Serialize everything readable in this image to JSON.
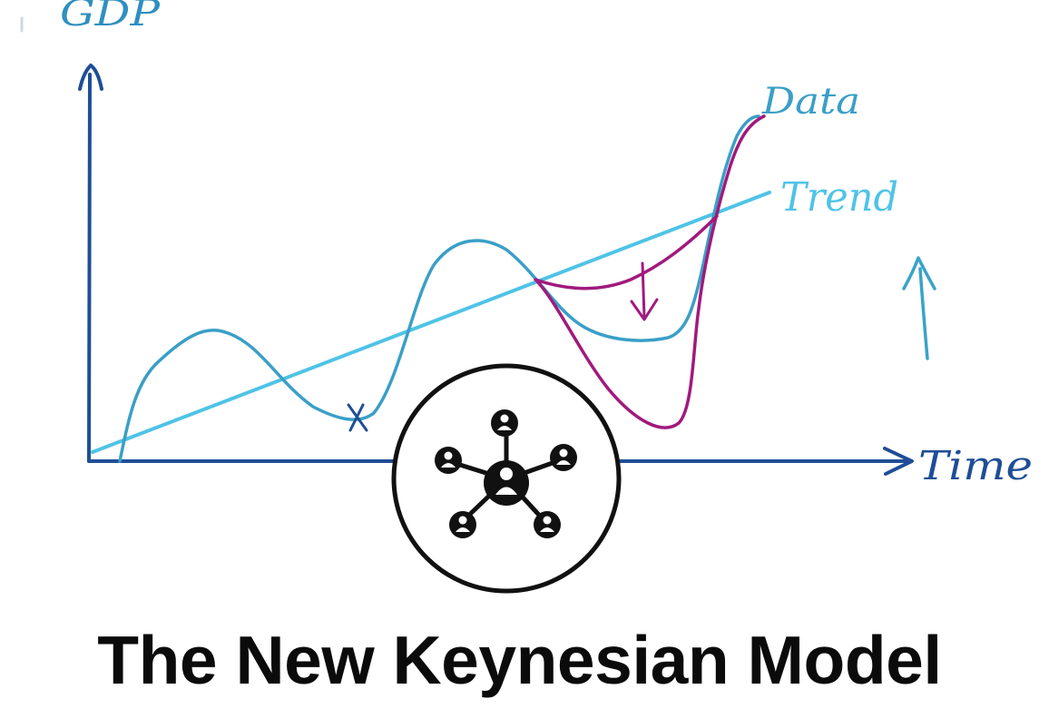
{
  "sketch": {
    "y_axis_label": "GDP",
    "x_axis_label": "Time",
    "series_labels": {
      "data": "Data",
      "trend": "Trend"
    },
    "colors": {
      "axis": "#1f4e96",
      "data_line": "#3a9fc7",
      "trend_line": "#4fc3e6",
      "shock_line": "#a01a7d",
      "ink": "#111111"
    },
    "icons": {
      "center_badge": "network-people-icon",
      "up_arrow": "up-arrow-icon",
      "down_arrow": "down-arrow-icon"
    }
  },
  "title": "The New Keynesian Model"
}
